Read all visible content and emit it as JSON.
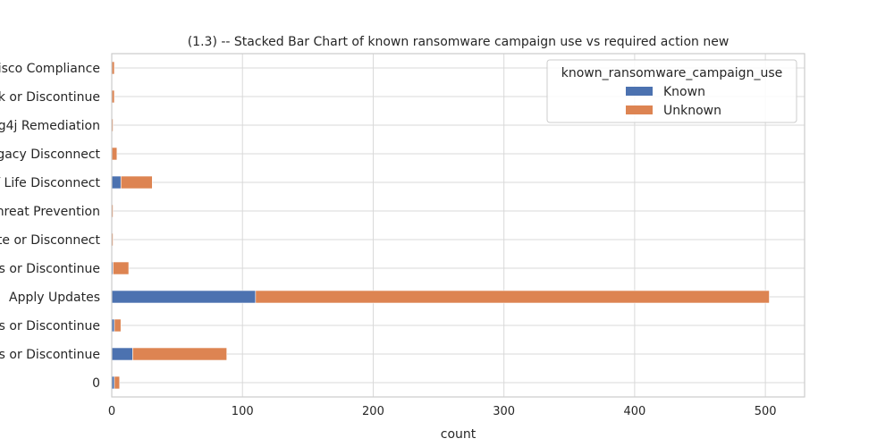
{
  "chart_data": {
    "type": "bar",
    "orientation": "horizontal",
    "stacked": true,
    "title": "(1.3) -- Stacked Bar Chart of  known ransomware campaign use vs required action new",
    "xlabel": "count",
    "ylabel": "",
    "xlim": [
      0,
      530
    ],
    "xticks": [
      0,
      100,
      200,
      300,
      400,
      500
    ],
    "grid": true,
    "categories": [
      "0",
      "ns or Discontinue",
      "ns or Discontinue",
      "Apply Updates",
      "es or Discontinue",
      "ate or Disconnect",
      "hreat Prevention",
      "f Life Disconnect",
      "gacy Disconnect",
      "g4j Remediation",
      "ck or Discontinue",
      "isco Compliance"
    ],
    "series": [
      {
        "name": "Known",
        "color": "#4c72b0",
        "values": [
          2,
          16,
          2,
          110,
          1,
          0,
          0,
          7,
          0,
          0,
          0,
          0
        ]
      },
      {
        "name": "Unknown",
        "color": "#dd8452",
        "values": [
          4,
          72,
          5,
          393,
          12,
          1,
          1,
          24,
          4,
          1,
          2,
          2
        ]
      }
    ],
    "legend": {
      "title": "known_ransomware_campaign_use",
      "position": "top-right"
    }
  }
}
